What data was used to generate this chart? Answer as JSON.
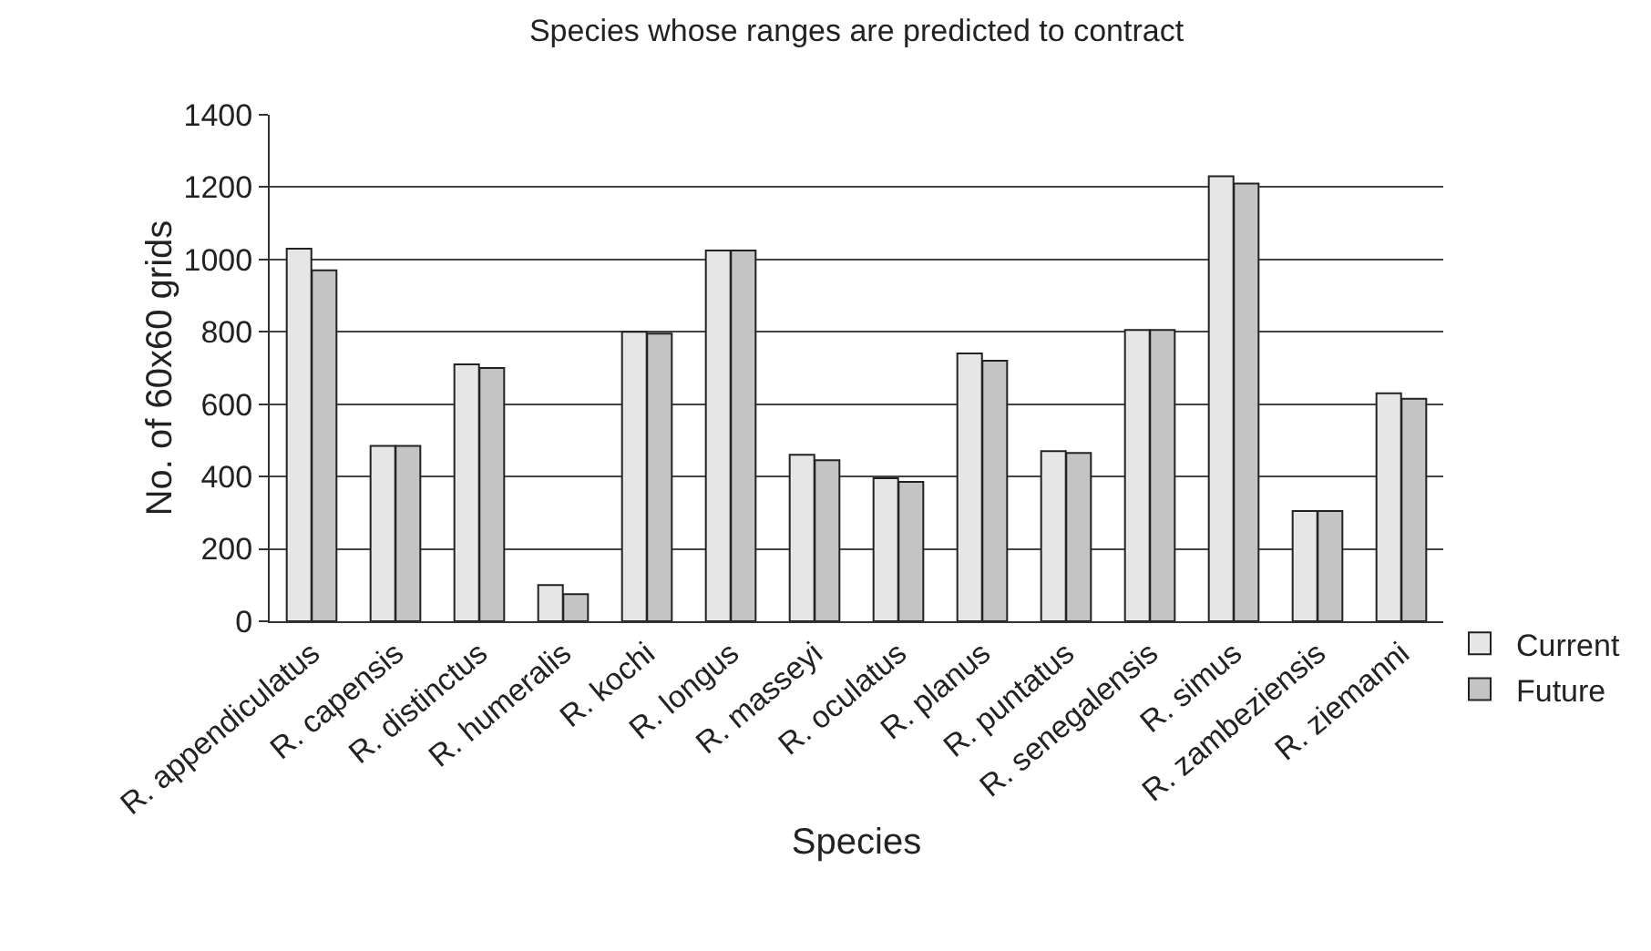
{
  "chart_data": {
    "type": "bar",
    "title": "Species whose ranges are predicted to contract",
    "xlabel": "Species",
    "ylabel": "No. of 60x60 grids",
    "categories": [
      "R. appendiculatus",
      "R. capensis",
      "R. distinctus",
      "R. humeralis",
      "R. kochi",
      "R. longus",
      "R. masseyi",
      "R. oculatus",
      "R. planus",
      "R. puntatus",
      "R. senegalensis",
      "R. simus",
      "R. zambeziensis",
      "R. ziemanni"
    ],
    "series": [
      {
        "name": "Current",
        "color": "#e6e6e6",
        "values": [
          1030,
          485,
          710,
          100,
          800,
          1025,
          460,
          395,
          740,
          470,
          805,
          1230,
          305,
          630
        ]
      },
      {
        "name": "Future",
        "color": "#c4c4c4",
        "values": [
          970,
          485,
          700,
          75,
          795,
          1025,
          445,
          385,
          720,
          465,
          805,
          1210,
          305,
          615
        ]
      }
    ],
    "ylim": [
      0,
      1400
    ],
    "yticks": [
      0,
      200,
      400,
      600,
      800,
      1000,
      1200,
      1400
    ],
    "grid": "y",
    "legend": "bottom right"
  }
}
